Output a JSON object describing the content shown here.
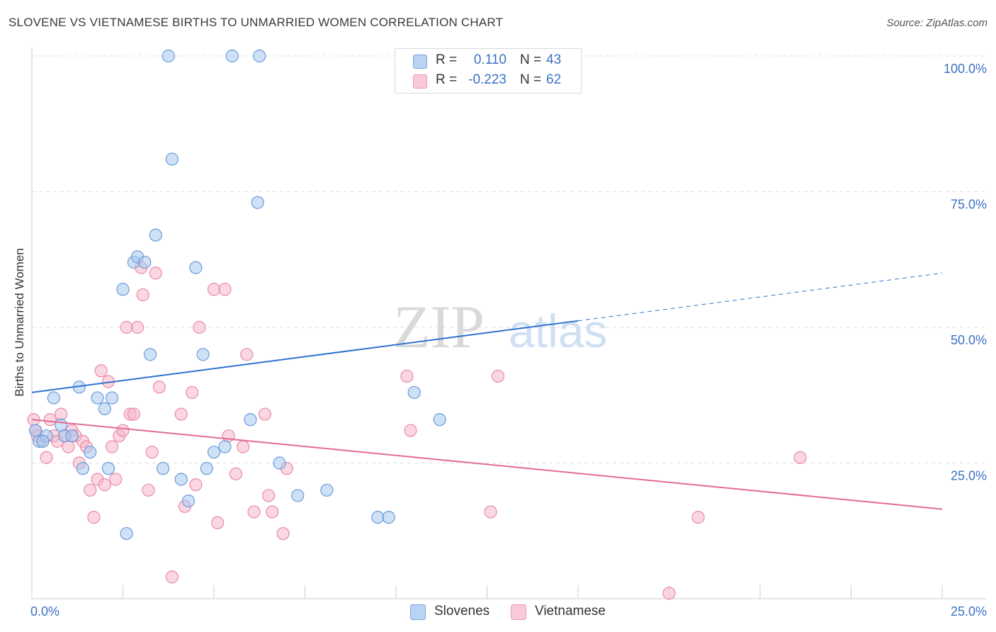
{
  "title": "SLOVENE VS VIETNAMESE BIRTHS TO UNMARRIED WOMEN CORRELATION CHART",
  "source": "Source: ZipAtlas.com",
  "watermark": {
    "zip": "ZIP",
    "atlas": "atlas"
  },
  "colors": {
    "blue_fill": "#a8c8f0",
    "blue_stroke": "#6b9bd8",
    "blue_line": "#2f72d0",
    "pink_fill": "#f5b7c9",
    "pink_stroke": "#e98aa8",
    "pink_line": "#e26b96",
    "axis_text": "#3a72c4",
    "grid": "#dddddd"
  },
  "legend_top": [
    {
      "r_label": "R =",
      "r_value": "0.110",
      "n_label": "N =",
      "n_value": "43"
    },
    {
      "r_label": "R =",
      "r_value": "-0.223",
      "n_label": "N =",
      "n_value": "62"
    }
  ],
  "legend_bottom": [
    {
      "label": "Slovenes"
    },
    {
      "label": "Vietnamese"
    }
  ],
  "chart_data": {
    "type": "scatter",
    "title": "SLOVENE VS VIETNAMESE BIRTHS TO UNMARRIED WOMEN CORRELATION CHART",
    "xlabel": "",
    "ylabel": "Births to Unmarried Women",
    "xlim": [
      0,
      25
    ],
    "ylim": [
      0,
      100
    ],
    "x_tick_labels": [
      "0.0%",
      "25.0%"
    ],
    "y_tick_labels": [
      "100.0%",
      "75.0%",
      "50.0%",
      "25.0%"
    ],
    "y_ticks": [
      100,
      75,
      50,
      25
    ],
    "series": [
      {
        "name": "Slovenes",
        "trend": {
          "x0": 0,
          "y0": 38.0,
          "x1": 15,
          "y1": 51.2,
          "dash_to_x": 25,
          "dash_to_y": 60.0
        },
        "points": [
          [
            0.1,
            31
          ],
          [
            0.2,
            29
          ],
          [
            0.4,
            30
          ],
          [
            0.6,
            37
          ],
          [
            0.8,
            32
          ],
          [
            0.9,
            30
          ],
          [
            1.1,
            30
          ],
          [
            1.3,
            39
          ],
          [
            1.4,
            24
          ],
          [
            1.6,
            27
          ],
          [
            1.8,
            37
          ],
          [
            2.0,
            35
          ],
          [
            2.1,
            24
          ],
          [
            2.2,
            37
          ],
          [
            2.5,
            57
          ],
          [
            2.6,
            12
          ],
          [
            2.8,
            62
          ],
          [
            2.9,
            63
          ],
          [
            3.1,
            62
          ],
          [
            3.25,
            45
          ],
          [
            3.4,
            67
          ],
          [
            3.6,
            24
          ],
          [
            3.75,
            100
          ],
          [
            3.85,
            81
          ],
          [
            4.1,
            22
          ],
          [
            4.3,
            18
          ],
          [
            4.5,
            61
          ],
          [
            4.7,
            45
          ],
          [
            4.8,
            24
          ],
          [
            5.0,
            27
          ],
          [
            5.3,
            28
          ],
          [
            5.5,
            100
          ],
          [
            6.0,
            33
          ],
          [
            6.2,
            73
          ],
          [
            6.25,
            100
          ],
          [
            6.8,
            25
          ],
          [
            7.3,
            19
          ],
          [
            8.1,
            20
          ],
          [
            9.5,
            15
          ],
          [
            9.8,
            15
          ],
          [
            10.5,
            38
          ],
          [
            11.2,
            33
          ],
          [
            0.3,
            29
          ]
        ]
      },
      {
        "name": "Vietnamese",
        "trend": {
          "x0": 0,
          "y0": 33.0,
          "x1": 25,
          "y1": 16.5
        },
        "points": [
          [
            0.05,
            33
          ],
          [
            0.1,
            31
          ],
          [
            0.3,
            29
          ],
          [
            0.4,
            26
          ],
          [
            0.5,
            33
          ],
          [
            0.6,
            30
          ],
          [
            0.7,
            29
          ],
          [
            0.8,
            34
          ],
          [
            0.9,
            30
          ],
          [
            1.0,
            28
          ],
          [
            1.1,
            31
          ],
          [
            1.2,
            30
          ],
          [
            1.3,
            25
          ],
          [
            1.4,
            29
          ],
          [
            1.5,
            28
          ],
          [
            1.6,
            20
          ],
          [
            1.7,
            15
          ],
          [
            1.8,
            22
          ],
          [
            1.9,
            42
          ],
          [
            2.0,
            21
          ],
          [
            2.1,
            40
          ],
          [
            2.2,
            28
          ],
          [
            2.3,
            22
          ],
          [
            2.4,
            30
          ],
          [
            2.5,
            31
          ],
          [
            2.6,
            50
          ],
          [
            2.7,
            34
          ],
          [
            2.8,
            34
          ],
          [
            2.9,
            50
          ],
          [
            3.0,
            61
          ],
          [
            3.05,
            56
          ],
          [
            3.2,
            20
          ],
          [
            3.3,
            27
          ],
          [
            3.4,
            60
          ],
          [
            3.5,
            39
          ],
          [
            3.85,
            4
          ],
          [
            4.1,
            34
          ],
          [
            4.2,
            17
          ],
          [
            4.4,
            38
          ],
          [
            4.5,
            21
          ],
          [
            4.6,
            50
          ],
          [
            5.0,
            57
          ],
          [
            5.1,
            14
          ],
          [
            5.3,
            57
          ],
          [
            5.4,
            30
          ],
          [
            5.6,
            23
          ],
          [
            5.8,
            28
          ],
          [
            5.9,
            45
          ],
          [
            6.1,
            16
          ],
          [
            6.4,
            34
          ],
          [
            6.5,
            19
          ],
          [
            6.6,
            16
          ],
          [
            6.9,
            12
          ],
          [
            7.0,
            24
          ],
          [
            10.3,
            41
          ],
          [
            10.4,
            31
          ],
          [
            12.6,
            16
          ],
          [
            12.8,
            41
          ],
          [
            17.5,
            1
          ],
          [
            18.3,
            15
          ],
          [
            21.1,
            26
          ],
          [
            0.15,
            30
          ]
        ]
      }
    ]
  }
}
